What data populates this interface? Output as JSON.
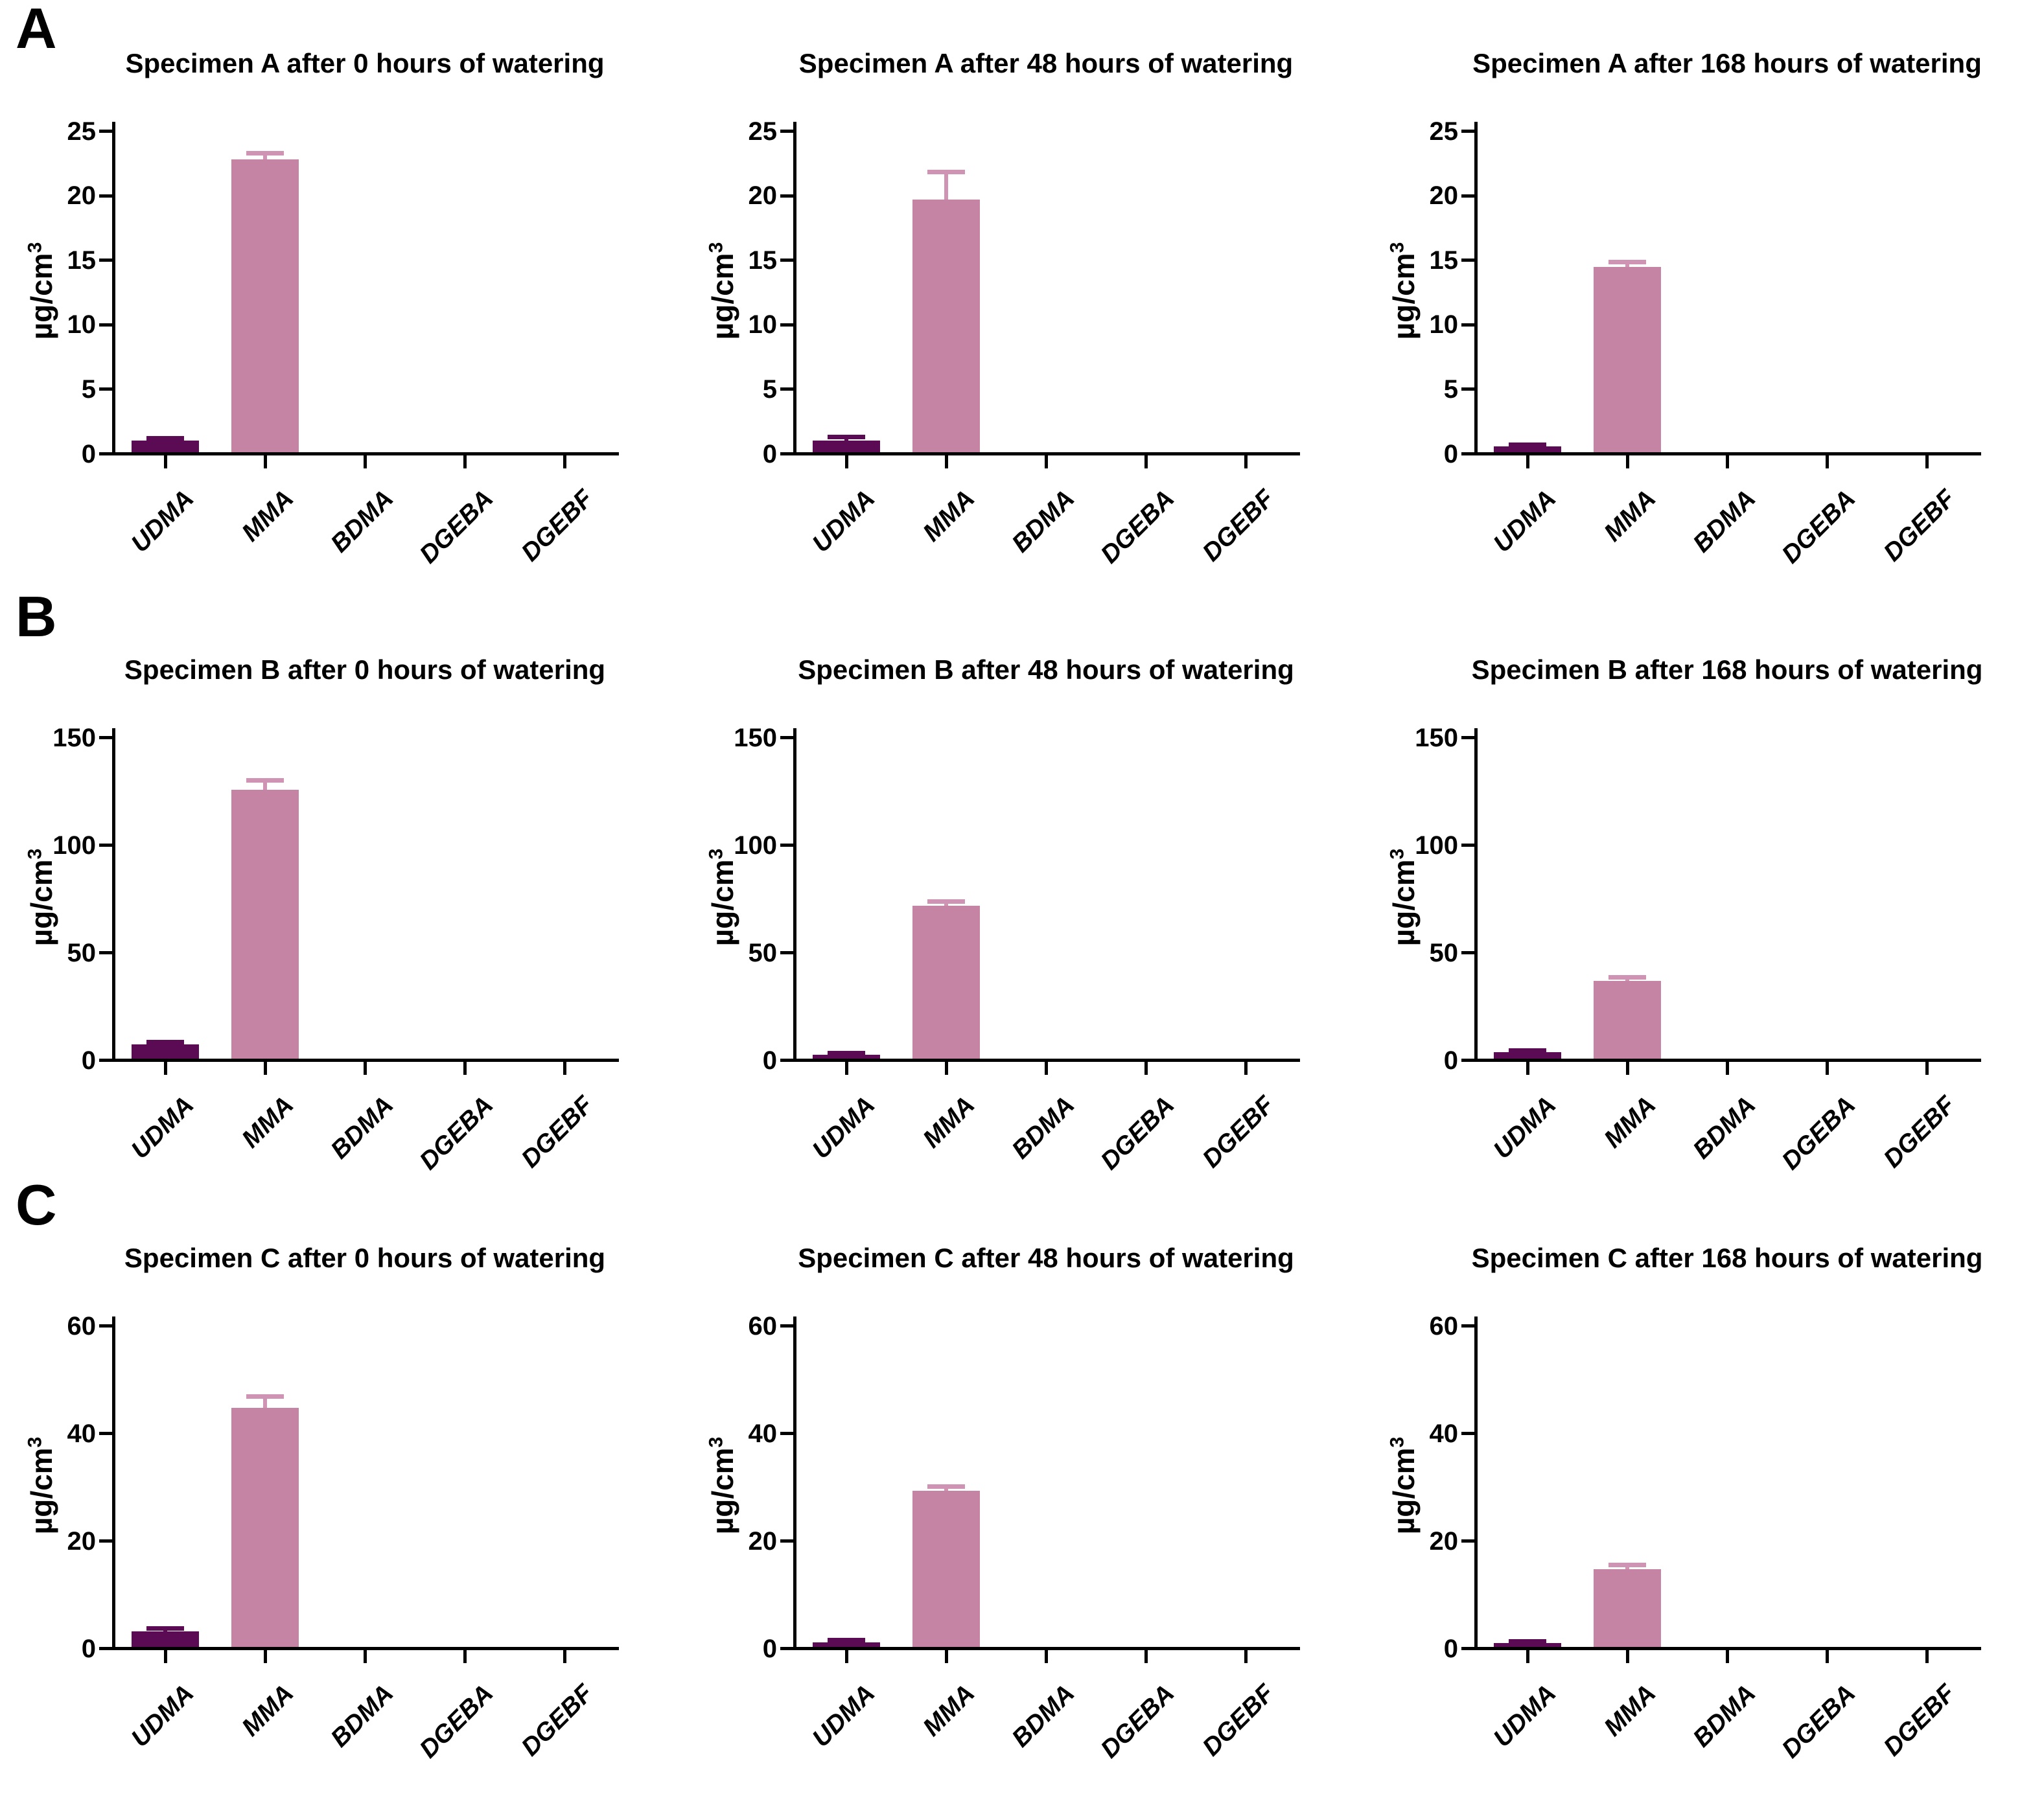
{
  "panels": [
    "A",
    "B",
    "C"
  ],
  "labels": {
    "y_base": "µg/cm",
    "y_sup": "3"
  },
  "palette": {
    "udma_bar": "#5B0B53",
    "mma_bar": "#C584A4",
    "mma_error": "#CF93B3",
    "axis": "#000000",
    "background": "#FFFFFF",
    "text": "#000000"
  },
  "chart_data": [
    {
      "type": "bar",
      "panel": "A",
      "title": "Specimen A after 0 hours of watering",
      "categories": [
        "UDMA",
        "MMA",
        "BDMA",
        "DGEBA",
        "DGEBF"
      ],
      "values": [
        0.9,
        22.7,
        0,
        0,
        0
      ],
      "errors_upper": [
        1.1,
        23.15,
        0,
        0,
        0
      ],
      "ylabel": "µg/cm³",
      "xlabel": "",
      "ylim": [
        0,
        25
      ],
      "yticks": [
        0,
        5,
        10,
        15,
        20,
        25
      ],
      "grid": false,
      "legend": false
    },
    {
      "type": "bar",
      "panel": "A",
      "title": "Specimen A after 48 hours of watering",
      "categories": [
        "UDMA",
        "MMA",
        "BDMA",
        "DGEBA",
        "DGEBF"
      ],
      "values": [
        0.9,
        19.6,
        0,
        0,
        0
      ],
      "errors_upper": [
        1.2,
        21.7,
        0,
        0,
        0
      ],
      "ylabel": "µg/cm³",
      "xlabel": "",
      "ylim": [
        0,
        25
      ],
      "yticks": [
        0,
        5,
        10,
        15,
        20,
        25
      ],
      "grid": false,
      "legend": false
    },
    {
      "type": "bar",
      "panel": "A",
      "title": "Specimen A after 168 hours of watering",
      "categories": [
        "UDMA",
        "MMA",
        "BDMA",
        "DGEBA",
        "DGEBF"
      ],
      "values": [
        0.45,
        14.35,
        0,
        0,
        0
      ],
      "errors_upper": [
        0.6,
        14.75,
        0,
        0,
        0
      ],
      "ylabel": "µg/cm³",
      "xlabel": "",
      "ylim": [
        0,
        25
      ],
      "yticks": [
        0,
        5,
        10,
        15,
        20,
        25
      ],
      "grid": false,
      "legend": false
    },
    {
      "type": "bar",
      "panel": "B",
      "title": "Specimen B after 0 hours of watering",
      "categories": [
        "UDMA",
        "MMA",
        "BDMA",
        "DGEBA",
        "DGEBF"
      ],
      "values": [
        6.5,
        125,
        0,
        0,
        0
      ],
      "errors_upper": [
        7.6,
        129.5,
        0,
        0,
        0
      ],
      "ylabel": "µg/cm³",
      "xlabel": "",
      "ylim": [
        0,
        150
      ],
      "yticks": [
        0,
        50,
        100,
        150
      ],
      "grid": false,
      "legend": false
    },
    {
      "type": "bar",
      "panel": "B",
      "title": "Specimen B after 48 hours of watering",
      "categories": [
        "UDMA",
        "MMA",
        "BDMA",
        "DGEBA",
        "DGEBF"
      ],
      "values": [
        1.8,
        71,
        0,
        0,
        0
      ],
      "errors_upper": [
        2.5,
        73,
        0,
        0,
        0
      ],
      "ylabel": "µg/cm³",
      "xlabel": "",
      "ylim": [
        0,
        150
      ],
      "yticks": [
        0,
        50,
        100,
        150
      ],
      "grid": false,
      "legend": false
    },
    {
      "type": "bar",
      "panel": "B",
      "title": "Specimen B after 168 hours of watering",
      "categories": [
        "UDMA",
        "MMA",
        "BDMA",
        "DGEBA",
        "DGEBF"
      ],
      "values": [
        3,
        36,
        0,
        0,
        0
      ],
      "errors_upper": [
        3.9,
        37.7,
        0,
        0,
        0
      ],
      "ylabel": "µg/cm³",
      "xlabel": "",
      "ylim": [
        0,
        150
      ],
      "yticks": [
        0,
        50,
        100,
        150
      ],
      "grid": false,
      "legend": false
    },
    {
      "type": "bar",
      "panel": "C",
      "title": "Specimen C after 0 hours of watering",
      "categories": [
        "UDMA",
        "MMA",
        "BDMA",
        "DGEBA",
        "DGEBF"
      ],
      "values": [
        2.9,
        44.5,
        0,
        0,
        0
      ],
      "errors_upper": [
        3.4,
        46.6,
        0,
        0,
        0
      ],
      "ylabel": "µg/cm³",
      "xlabel": "",
      "ylim": [
        0,
        60
      ],
      "yticks": [
        0,
        20,
        40,
        60
      ],
      "grid": false,
      "legend": false
    },
    {
      "type": "bar",
      "panel": "C",
      "title": "Specimen C after 48 hours of watering",
      "categories": [
        "UDMA",
        "MMA",
        "BDMA",
        "DGEBA",
        "DGEBF"
      ],
      "values": [
        0.9,
        29,
        0,
        0,
        0
      ],
      "errors_upper": [
        1.3,
        29.8,
        0,
        0,
        0
      ],
      "ylabel": "µg/cm³",
      "xlabel": "",
      "ylim": [
        0,
        60
      ],
      "yticks": [
        0,
        20,
        40,
        60
      ],
      "grid": false,
      "legend": false
    },
    {
      "type": "bar",
      "panel": "C",
      "title": "Specimen C after 168 hours of watering",
      "categories": [
        "UDMA",
        "MMA",
        "BDMA",
        "DGEBA",
        "DGEBF"
      ],
      "values": [
        0.7,
        14.5,
        0,
        0,
        0
      ],
      "errors_upper": [
        1.0,
        15.2,
        0,
        0,
        0
      ],
      "ylabel": "µg/cm³",
      "xlabel": "",
      "ylim": [
        0,
        60
      ],
      "yticks": [
        0,
        20,
        40,
        60
      ],
      "grid": false,
      "legend": false
    }
  ]
}
